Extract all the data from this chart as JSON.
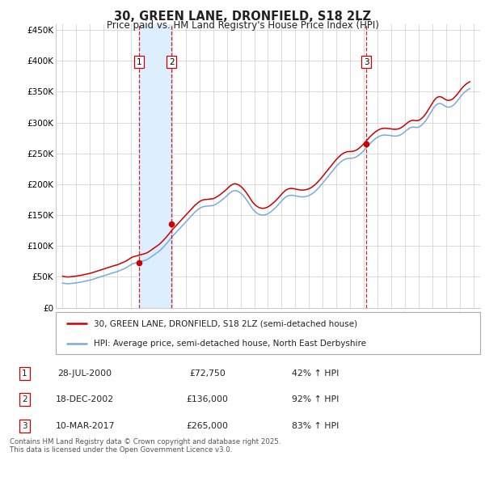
{
  "title": "30, GREEN LANE, DRONFIELD, S18 2LZ",
  "subtitle": "Price paid vs. HM Land Registry's House Price Index (HPI)",
  "legend_house": "30, GREEN LANE, DRONFIELD, S18 2LZ (semi-detached house)",
  "legend_hpi": "HPI: Average price, semi-detached house, North East Derbyshire",
  "footer": "Contains HM Land Registry data © Crown copyright and database right 2025.\nThis data is licensed under the Open Government Licence v3.0.",
  "transactions": [
    {
      "num": 1,
      "date": "28-JUL-2000",
      "price": "£72,750",
      "pct": "42% ↑ HPI",
      "x_year": 2000.57,
      "y": 72750
    },
    {
      "num": 2,
      "date": "18-DEC-2002",
      "price": "£136,000",
      "pct": "92% ↑ HPI",
      "x_year": 2002.96,
      "y": 136000
    },
    {
      "num": 3,
      "date": "10-MAR-2017",
      "price": "£265,000",
      "pct": "83% ↑ HPI",
      "x_year": 2017.19,
      "y": 265000
    }
  ],
  "house_color": "#cc0000",
  "hpi_color": "#7aaadd",
  "vline_color": "#cc0000",
  "shade_color": "#ddeeff",
  "background_color": "#ffffff",
  "grid_color": "#cccccc",
  "ylim": [
    0,
    460000
  ],
  "xlim": [
    1994.5,
    2025.5
  ],
  "yticks": [
    0,
    50000,
    100000,
    150000,
    200000,
    250000,
    300000,
    350000,
    400000,
    450000
  ],
  "ytick_labels": [
    "£0",
    "£50K",
    "£100K",
    "£150K",
    "£200K",
    "£250K",
    "£300K",
    "£350K",
    "£400K",
    "£450K"
  ],
  "xticks": [
    1995,
    1996,
    1997,
    1998,
    1999,
    2000,
    2001,
    2002,
    2003,
    2004,
    2005,
    2006,
    2007,
    2008,
    2009,
    2010,
    2011,
    2012,
    2013,
    2014,
    2015,
    2016,
    2017,
    2018,
    2019,
    2020,
    2021,
    2022,
    2023,
    2024,
    2025
  ],
  "hpi_data_y": [
    40000,
    39500,
    39200,
    39000,
    38800,
    38700,
    38900,
    39100,
    39300,
    39500,
    39800,
    40000,
    40200,
    40500,
    40800,
    41200,
    41500,
    41800,
    42200,
    42600,
    43000,
    43400,
    43800,
    44200,
    44600,
    45100,
    45700,
    46400,
    47000,
    47600,
    48200,
    48800,
    49400,
    50000,
    50600,
    51200,
    51800,
    52400,
    53000,
    53600,
    54200,
    54800,
    55400,
    56000,
    56500,
    57000,
    57500,
    58000,
    58500,
    59200,
    60000,
    60800,
    61600,
    62400,
    63200,
    64000,
    65000,
    66200,
    67400,
    68600,
    69800,
    70800,
    71500,
    72000,
    72500,
    73000,
    73500,
    74000,
    74500,
    75000,
    75500,
    76000,
    76500,
    77200,
    78000,
    79000,
    80200,
    81500,
    82800,
    84100,
    85400,
    86700,
    88000,
    89300,
    90600,
    92000,
    93800,
    95700,
    97600,
    99500,
    101500,
    103600,
    105800,
    108100,
    110400,
    112700,
    115000,
    117000,
    119000,
    121000,
    123000,
    125000,
    127000,
    129000,
    131000,
    133000,
    135000,
    137000,
    139000,
    141000,
    143000,
    145000,
    147000,
    149000,
    151000,
    153000,
    155000,
    156500,
    158000,
    159500,
    161000,
    162000,
    163000,
    163500,
    164000,
    164200,
    164400,
    164600,
    164800,
    165000,
    165200,
    165400,
    165600,
    166500,
    167400,
    168500,
    169600,
    170800,
    172100,
    173500,
    175000,
    176500,
    178100,
    179700,
    181400,
    183200,
    185000,
    186500,
    187800,
    188800,
    189500,
    189800,
    189600,
    189000,
    188200,
    187100,
    185800,
    184200,
    182400,
    180300,
    178000,
    175500,
    172800,
    170000,
    167100,
    164200,
    161500,
    159100,
    157000,
    155300,
    153800,
    152500,
    151500,
    150800,
    150300,
    150000,
    150000,
    150300,
    150800,
    151500,
    152400,
    153500,
    154800,
    156200,
    157700,
    159300,
    161000,
    162800,
    164700,
    166700,
    168800,
    170900,
    173100,
    175100,
    176900,
    178500,
    179800,
    180800,
    181500,
    182000,
    182200,
    182200,
    182000,
    181700,
    181300,
    180900,
    180500,
    180100,
    179800,
    179600,
    179500,
    179600,
    179800,
    180100,
    180500,
    181100,
    181800,
    182700,
    183800,
    185000,
    186400,
    187900,
    189600,
    191400,
    193400,
    195400,
    197500,
    199700,
    202000,
    204200,
    206500,
    208800,
    211100,
    213400,
    215700,
    218000,
    220300,
    222600,
    224900,
    227200,
    229400,
    231400,
    233200,
    234900,
    236500,
    237900,
    239100,
    240100,
    240900,
    241500,
    241900,
    242000,
    242000,
    242100,
    242300,
    242700,
    243200,
    244000,
    245000,
    246200,
    247600,
    249200,
    250900,
    252700,
    254700,
    256800,
    258900,
    261100,
    263200,
    265100,
    267000,
    268800,
    270500,
    272100,
    273600,
    275000,
    276200,
    277200,
    278100,
    278800,
    279300,
    279600,
    279800,
    279800,
    279700,
    279500,
    279300,
    279000,
    278700,
    278400,
    278200,
    278100,
    278100,
    278300,
    278600,
    279200,
    280000,
    281000,
    282200,
    283600,
    285100,
    286700,
    288200,
    289600,
    290800,
    291700,
    292300,
    292600,
    292600,
    292300,
    292100,
    292200,
    292600,
    293400,
    294600,
    296200,
    298000,
    300100,
    302500,
    305100,
    308000,
    311000,
    314000,
    317100,
    320200,
    323100,
    325700,
    327800,
    329400,
    330400,
    330900,
    330900,
    330400,
    329400,
    328200,
    327000,
    326000,
    325300,
    325000,
    325100,
    325500,
    326300,
    327500,
    329000,
    330800,
    332900,
    335100,
    337500,
    340000,
    342400,
    344700,
    346800,
    348600,
    350300,
    351800,
    353100,
    354200,
    355200
  ],
  "house_data_y": [
    51000,
    50500,
    50200,
    50000,
    49800,
    49700,
    49900,
    50100,
    50300,
    50500,
    50800,
    51000,
    51200,
    51500,
    51800,
    52200,
    52500,
    52800,
    53200,
    53600,
    54000,
    54400,
    54800,
    55200,
    55600,
    56100,
    56700,
    57400,
    58000,
    58600,
    59200,
    59800,
    60400,
    61000,
    61600,
    62200,
    62800,
    63400,
    64000,
    64600,
    65200,
    65800,
    66400,
    67000,
    67500,
    68000,
    68500,
    69000,
    69500,
    70200,
    71000,
    71800,
    72600,
    73400,
    74200,
    75000,
    76000,
    77200,
    78400,
    79600,
    80800,
    81800,
    82500,
    83000,
    83500,
    84000,
    84500,
    85000,
    85500,
    86000,
    86500,
    87000,
    87500,
    88200,
    89000,
    90000,
    91200,
    92500,
    93800,
    95100,
    96400,
    97700,
    99000,
    100300,
    101600,
    103000,
    104800,
    106700,
    108600,
    110500,
    112500,
    114600,
    116800,
    119100,
    121400,
    123700,
    126000,
    128000,
    130000,
    132000,
    134000,
    136000,
    138000,
    140000,
    142000,
    144000,
    146000,
    148000,
    150000,
    152000,
    154000,
    156000,
    158000,
    160000,
    162000,
    164000,
    166000,
    167500,
    169000,
    170500,
    172000,
    173000,
    174000,
    174500,
    175000,
    175200,
    175400,
    175600,
    175800,
    176000,
    176200,
    176400,
    176600,
    177500,
    178400,
    179500,
    180600,
    181800,
    183100,
    184500,
    186000,
    187500,
    189100,
    190700,
    192400,
    194200,
    196000,
    197500,
    198800,
    199800,
    200500,
    200800,
    200600,
    200000,
    199200,
    198100,
    196800,
    195200,
    193400,
    191300,
    189000,
    186500,
    183800,
    181000,
    178100,
    175200,
    172500,
    170100,
    168000,
    166300,
    164800,
    163500,
    162500,
    161800,
    161300,
    161000,
    161000,
    161300,
    161800,
    162500,
    163400,
    164500,
    165800,
    167200,
    168700,
    170300,
    172000,
    173800,
    175700,
    177700,
    179800,
    181900,
    184100,
    186100,
    187900,
    189500,
    190800,
    191800,
    192500,
    193000,
    193200,
    193200,
    193000,
    192700,
    192300,
    191900,
    191500,
    191100,
    190800,
    190600,
    190500,
    190600,
    190800,
    191100,
    191500,
    192100,
    192800,
    193700,
    194800,
    196000,
    197400,
    198900,
    200600,
    202400,
    204400,
    206400,
    208500,
    210700,
    213000,
    215200,
    217500,
    219800,
    222100,
    224400,
    226700,
    229000,
    231300,
    233600,
    235900,
    238200,
    240400,
    242400,
    244200,
    245900,
    247500,
    248900,
    250100,
    251100,
    251900,
    252500,
    252900,
    253000,
    253000,
    253100,
    253300,
    253700,
    254200,
    255000,
    256000,
    257200,
    258600,
    260200,
    261900,
    263700,
    265700,
    267800,
    269900,
    272100,
    274200,
    276100,
    278000,
    279800,
    281500,
    283100,
    284600,
    286000,
    287200,
    288200,
    289100,
    289800,
    290300,
    290600,
    290800,
    290800,
    290700,
    290500,
    290300,
    290000,
    289700,
    289400,
    289200,
    289100,
    289100,
    289300,
    289600,
    290200,
    291000,
    292000,
    293200,
    294600,
    296100,
    297700,
    299200,
    300600,
    301800,
    302700,
    303300,
    303600,
    303600,
    303300,
    303100,
    303200,
    303600,
    304400,
    305600,
    307200,
    309000,
    311100,
    313500,
    316100,
    319000,
    322000,
    325000,
    328100,
    331200,
    334100,
    336700,
    338800,
    340400,
    341400,
    341900,
    341900,
    341400,
    340400,
    339200,
    338000,
    337000,
    336300,
    336000,
    336100,
    336500,
    337300,
    338500,
    340000,
    341800,
    343900,
    346100,
    348500,
    351000,
    353400,
    355700,
    357800,
    359600,
    361300,
    362800,
    364100,
    365200,
    366200
  ]
}
